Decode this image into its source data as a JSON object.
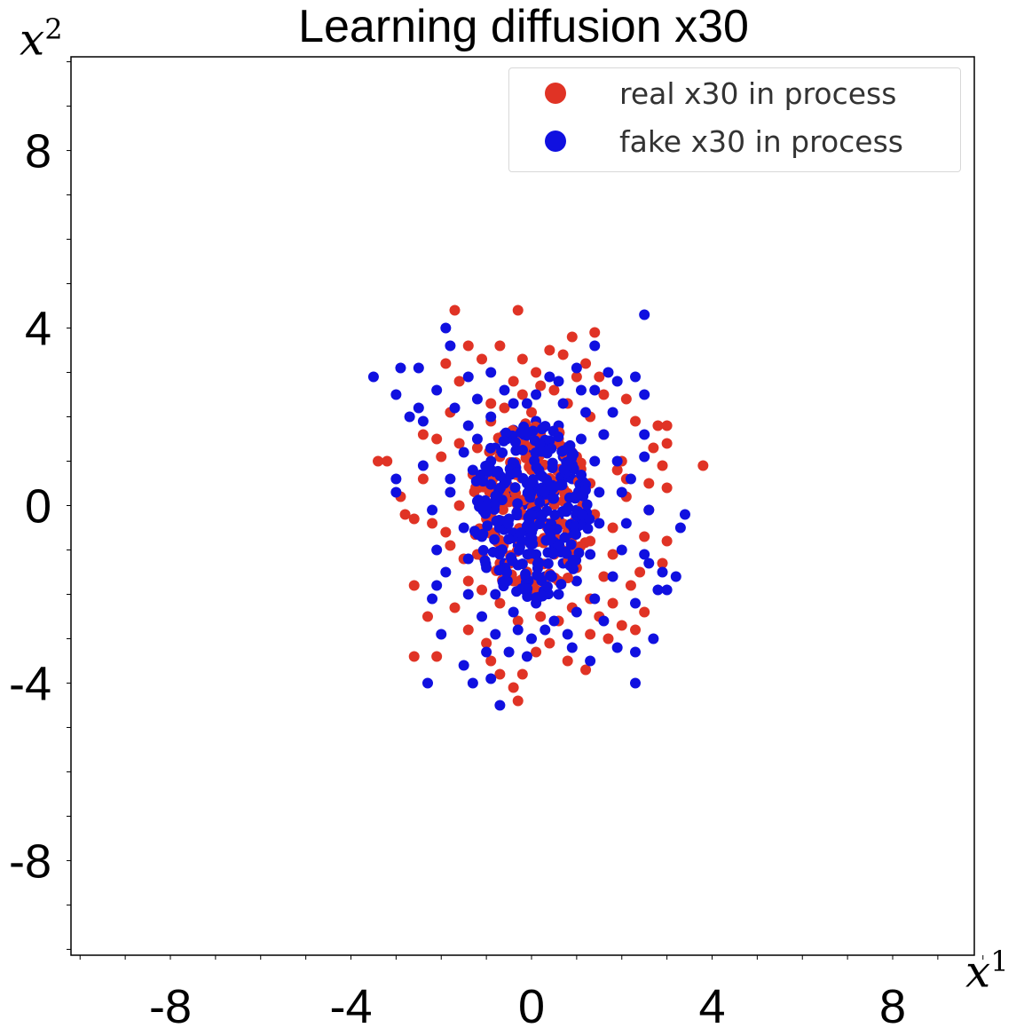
{
  "chart_data": {
    "type": "scatter",
    "title": "Learning diffusion x30",
    "xlabel": "x",
    "xlabel_sup": "1",
    "ylabel": "x",
    "ylabel_sup": "2",
    "xlim": [
      -10,
      10
    ],
    "ylim": [
      -10,
      10
    ],
    "xticks": [
      -8,
      -4,
      0,
      4,
      8
    ],
    "yticks": [
      8,
      4,
      0,
      -4,
      -8
    ],
    "xtick_labels": [
      "-8",
      "-4",
      "0",
      "4",
      "8"
    ],
    "ytick_labels": [
      "8",
      "4",
      "0",
      "-4",
      "-8"
    ],
    "grid": false,
    "legend_position": "top-right",
    "series": [
      {
        "name": "real x30 in process",
        "color": "#e03325",
        "points": [
          [
            -3.4,
            1.0
          ],
          [
            -3.2,
            1.0
          ],
          [
            -2.4,
            1.6
          ],
          [
            -2.1,
            1.5
          ],
          [
            -2.9,
            0.2
          ],
          [
            -2.6,
            -0.3
          ],
          [
            -2.2,
            -0.4
          ],
          [
            -1.8,
            -0.9
          ],
          [
            -2.6,
            -1.8
          ],
          [
            -2.3,
            -2.5
          ],
          [
            -2.6,
            -3.4
          ],
          [
            -2.1,
            -3.4
          ],
          [
            -1.9,
            3.2
          ],
          [
            -1.8,
            2.1
          ],
          [
            -1.6,
            1.4
          ],
          [
            -1.4,
            3.6
          ],
          [
            -1.1,
            3.3
          ],
          [
            -0.9,
            2.3
          ],
          [
            -1.7,
            4.4
          ],
          [
            -0.7,
            3.6
          ],
          [
            -0.3,
            4.4
          ],
          [
            -0.2,
            3.3
          ],
          [
            0.1,
            3.0
          ],
          [
            0.4,
            3.5
          ],
          [
            0.7,
            3.4
          ],
          [
            1.4,
            3.9
          ],
          [
            1.2,
            3.2
          ],
          [
            0.5,
            2.6
          ],
          [
            0.2,
            2.7
          ],
          [
            -0.4,
            2.8
          ],
          [
            -0.2,
            2.5
          ],
          [
            1.0,
            2.9
          ],
          [
            1.6,
            2.5
          ],
          [
            2.1,
            2.4
          ],
          [
            2.3,
            1.9
          ],
          [
            2.8,
            1.8
          ],
          [
            3.0,
            1.8
          ],
          [
            3.0,
            1.4
          ],
          [
            2.9,
            0.9
          ],
          [
            3.8,
            0.9
          ],
          [
            3.0,
            0.4
          ],
          [
            2.6,
            0.5
          ],
          [
            2.1,
            0.6
          ],
          [
            2.0,
            1.0
          ],
          [
            2.6,
            -0.1
          ],
          [
            2.5,
            -0.7
          ],
          [
            3.0,
            -0.8
          ],
          [
            2.9,
            -1.3
          ],
          [
            2.4,
            -1.5
          ],
          [
            2.2,
            -1.8
          ],
          [
            2.5,
            -2.4
          ],
          [
            2.3,
            -2.8
          ],
          [
            1.8,
            -2.2
          ],
          [
            1.5,
            -2.5
          ],
          [
            1.3,
            -2.9
          ],
          [
            1.2,
            -3.7
          ],
          [
            0.8,
            -3.5
          ],
          [
            0.4,
            -3.1
          ],
          [
            0.1,
            -3.3
          ],
          [
            -0.2,
            -3.8
          ],
          [
            -0.4,
            -4.1
          ],
          [
            -0.3,
            -4.4
          ],
          [
            -0.7,
            -3.8
          ],
          [
            -1.0,
            -3.1
          ],
          [
            -1.4,
            -2.8
          ],
          [
            -1.7,
            -2.3
          ],
          [
            -1.4,
            -1.7
          ],
          [
            -1.5,
            -1.2
          ],
          [
            -1.9,
            -0.6
          ],
          [
            -1.6,
            0.0
          ],
          [
            -1.3,
            0.7
          ],
          [
            -1.2,
            1.3
          ],
          [
            -0.9,
            1.9
          ],
          [
            -0.6,
            2.2
          ],
          [
            0.0,
            2.1
          ],
          [
            0.8,
            2.3
          ],
          [
            1.3,
            2.0
          ],
          [
            1.6,
            1.6
          ],
          [
            1.9,
            0.8
          ],
          [
            2.1,
            0.2
          ],
          [
            1.8,
            -0.5
          ],
          [
            1.8,
            -1.1
          ],
          [
            1.6,
            -1.6
          ],
          [
            1.3,
            -2.1
          ],
          [
            0.9,
            -2.3
          ],
          [
            0.6,
            -2.6
          ],
          [
            0.2,
            -2.5
          ],
          [
            -0.3,
            -2.6
          ],
          [
            -0.7,
            -2.2
          ],
          [
            -1.1,
            -1.9
          ],
          [
            -1.2,
            -1.1
          ],
          [
            -1.0,
            -0.3
          ],
          [
            -0.9,
            0.4
          ],
          [
            -0.7,
            1.1
          ],
          [
            -0.3,
            1.4
          ],
          [
            0.2,
            1.6
          ],
          [
            0.6,
            1.5
          ],
          [
            1.0,
            1.1
          ],
          [
            1.3,
            0.5
          ],
          [
            1.4,
            -0.2
          ],
          [
            1.3,
            -0.8
          ],
          [
            1.0,
            -1.4
          ],
          [
            0.6,
            -1.7
          ],
          [
            0.1,
            -1.9
          ],
          [
            -0.4,
            -1.7
          ],
          [
            -0.7,
            -1.3
          ],
          [
            -0.6,
            -0.5
          ],
          [
            -0.4,
            0.3
          ],
          [
            0.0,
            0.8
          ],
          [
            0.4,
            0.6
          ],
          [
            0.7,
            0.1
          ],
          [
            0.8,
            -0.6
          ],
          [
            0.5,
            -1.1
          ],
          [
            0.0,
            -1.2
          ],
          [
            -0.3,
            -0.8
          ],
          [
            -0.2,
            0.0
          ],
          [
            0.2,
            0.2
          ],
          [
            0.4,
            -0.4
          ],
          [
            -2.4,
            0.6
          ],
          [
            -2.0,
            1.1
          ],
          [
            1.7,
            -3.0
          ],
          [
            2.0,
            -2.7
          ],
          [
            0.9,
            3.8
          ],
          [
            -0.9,
            -3.5
          ],
          [
            1.5,
            2.9
          ],
          [
            -1.6,
            2.8
          ],
          [
            2.7,
            1.3
          ],
          [
            -2.8,
            -0.2
          ]
        ]
      },
      {
        "name": "fake x30 in process",
        "color": "#1010e0",
        "points": [
          [
            -3.5,
            2.9
          ],
          [
            -3.0,
            2.5
          ],
          [
            -2.9,
            3.1
          ],
          [
            -2.5,
            2.2
          ],
          [
            -2.5,
            3.1
          ],
          [
            -2.1,
            2.6
          ],
          [
            -2.4,
            1.9
          ],
          [
            -1.8,
            3.6
          ],
          [
            -1.4,
            2.9
          ],
          [
            -1.9,
            4.0
          ],
          [
            -3.0,
            0.6
          ],
          [
            -3.0,
            0.3
          ],
          [
            -2.4,
            0.9
          ],
          [
            -2.2,
            -0.1
          ],
          [
            -1.8,
            0.6
          ],
          [
            -2.1,
            -1.0
          ],
          [
            -1.9,
            -1.5
          ],
          [
            -2.2,
            -2.1
          ],
          [
            -2.0,
            -2.9
          ],
          [
            -2.3,
            -4.0
          ],
          [
            -1.5,
            -3.6
          ],
          [
            -1.3,
            -4.0
          ],
          [
            -0.9,
            -3.9
          ],
          [
            -0.7,
            -4.5
          ],
          [
            -0.1,
            -3.4
          ],
          [
            0.3,
            -2.8
          ],
          [
            0.8,
            -2.9
          ],
          [
            1.3,
            -3.5
          ],
          [
            1.9,
            -3.2
          ],
          [
            2.3,
            -3.3
          ],
          [
            2.7,
            -3.0
          ],
          [
            2.3,
            -4.0
          ],
          [
            2.8,
            -1.9
          ],
          [
            3.0,
            -1.9
          ],
          [
            3.2,
            -1.6
          ],
          [
            3.3,
            -0.5
          ],
          [
            3.4,
            -0.2
          ],
          [
            2.6,
            -0.1
          ],
          [
            2.5,
            -1.1
          ],
          [
            2.6,
            -1.3
          ],
          [
            2.5,
            1.6
          ],
          [
            2.5,
            1.1
          ],
          [
            2.5,
            2.5
          ],
          [
            2.3,
            2.9
          ],
          [
            1.9,
            2.8
          ],
          [
            1.4,
            3.6
          ],
          [
            1.0,
            3.1
          ],
          [
            0.6,
            2.8
          ],
          [
            2.5,
            4.3
          ],
          [
            1.4,
            2.6
          ],
          [
            1.8,
            2.1
          ],
          [
            -0.1,
            2.3
          ],
          [
            -0.6,
            2.6
          ],
          [
            -1.2,
            2.4
          ],
          [
            -1.4,
            1.8
          ],
          [
            -1.5,
            1.2
          ],
          [
            -1.8,
            0.3
          ],
          [
            -1.5,
            -0.5
          ],
          [
            -1.4,
            -1.2
          ],
          [
            -1.4,
            -2.0
          ],
          [
            -1.1,
            -2.5
          ],
          [
            -0.8,
            -2.9
          ],
          [
            -0.5,
            -3.3
          ],
          [
            0.0,
            -3.0
          ],
          [
            0.5,
            -2.6
          ],
          [
            1.0,
            -2.4
          ],
          [
            1.4,
            -2.1
          ],
          [
            1.8,
            -1.6
          ],
          [
            2.0,
            -1.0
          ],
          [
            2.1,
            -0.4
          ],
          [
            2.0,
            0.3
          ],
          [
            1.9,
            1.0
          ],
          [
            1.6,
            1.6
          ],
          [
            1.2,
            2.1
          ],
          [
            0.7,
            2.3
          ],
          [
            0.1,
            2.5
          ],
          [
            -0.4,
            2.3
          ],
          [
            -0.9,
            2.0
          ],
          [
            -1.2,
            1.5
          ],
          [
            -1.3,
            0.8
          ],
          [
            -1.2,
            0.1
          ],
          [
            -1.1,
            -0.7
          ],
          [
            -1.0,
            -1.4
          ],
          [
            -0.8,
            -2.0
          ],
          [
            -0.4,
            -2.4
          ],
          [
            0.1,
            -2.2
          ],
          [
            0.6,
            -2.0
          ],
          [
            1.0,
            -1.7
          ],
          [
            1.3,
            -1.1
          ],
          [
            1.5,
            -0.4
          ],
          [
            1.5,
            0.3
          ],
          [
            1.4,
            1.0
          ],
          [
            1.1,
            1.5
          ],
          [
            0.6,
            1.8
          ],
          [
            0.1,
            1.9
          ],
          [
            -0.4,
            1.7
          ],
          [
            -0.8,
            1.3
          ],
          [
            -0.9,
            0.7
          ],
          [
            -0.9,
            0.0
          ],
          [
            -0.8,
            -0.7
          ],
          [
            -0.6,
            -1.3
          ],
          [
            -0.2,
            -1.7
          ],
          [
            0.3,
            -1.6
          ],
          [
            0.7,
            -1.3
          ],
          [
            0.9,
            -0.7
          ],
          [
            1.0,
            -0.1
          ],
          [
            0.9,
            0.6
          ],
          [
            0.7,
            1.1
          ],
          [
            0.3,
            1.3
          ],
          [
            -0.1,
            1.2
          ],
          [
            -0.4,
            0.9
          ],
          [
            -0.5,
            0.3
          ],
          [
            -0.5,
            -0.3
          ],
          [
            -0.3,
            -0.9
          ],
          [
            0.1,
            -1.1
          ],
          [
            0.5,
            -0.9
          ],
          [
            0.6,
            -0.3
          ],
          [
            0.5,
            0.3
          ],
          [
            0.2,
            0.7
          ],
          [
            -0.1,
            0.5
          ],
          [
            -0.2,
            0.0
          ],
          [
            0.0,
            -0.5
          ],
          [
            0.3,
            -0.4
          ],
          [
            0.3,
            0.1
          ],
          [
            0.0,
            0.1
          ],
          [
            -0.6,
            1.6
          ],
          [
            0.4,
            2.9
          ],
          [
            -0.3,
            -2.8
          ],
          [
            1.6,
            -2.6
          ],
          [
            -1.7,
            2.2
          ],
          [
            2.2,
            0.6
          ],
          [
            -2.1,
            -1.8
          ],
          [
            0.9,
            -3.2
          ],
          [
            -0.9,
            3.0
          ],
          [
            1.7,
            3.0
          ],
          [
            2.9,
            -1.5
          ],
          [
            -1.0,
            -3.3
          ],
          [
            2.3,
            -2.2
          ],
          [
            -2.7,
            2.0
          ],
          [
            1.1,
            2.6
          ]
        ]
      }
    ]
  }
}
